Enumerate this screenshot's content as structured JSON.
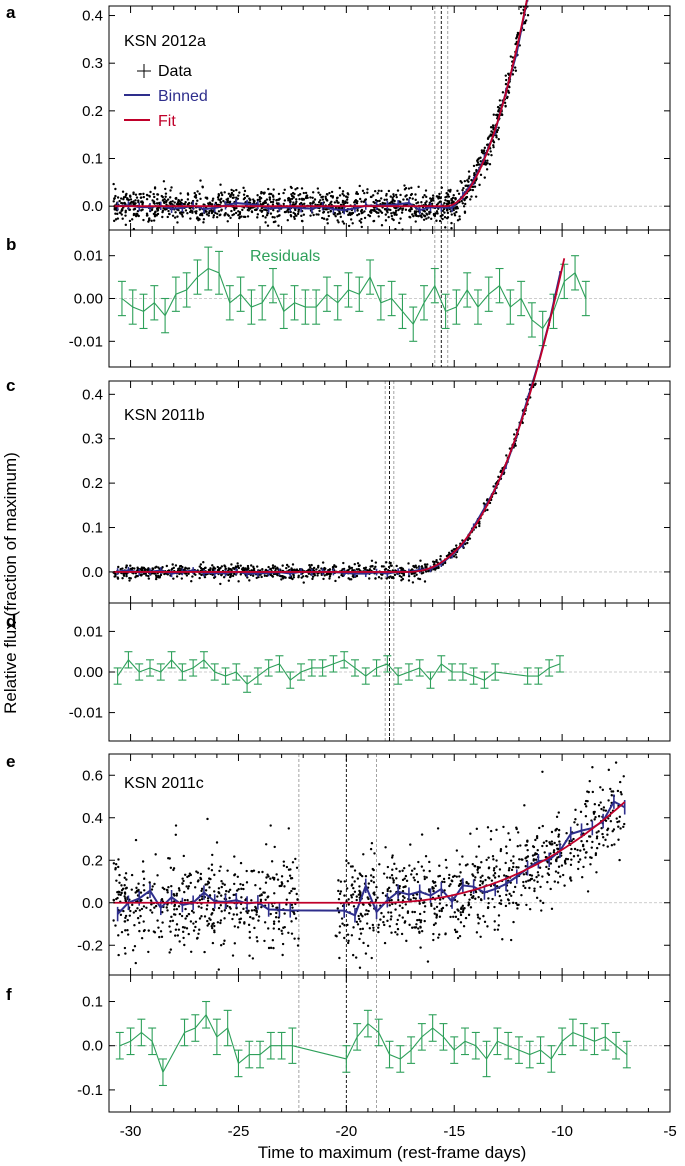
{
  "figure": {
    "ylabel": "Relative flux (fraction of maximum)",
    "xlabel": "Time to maximum (rest-frame days)",
    "x_ticks": [
      -30,
      -25,
      -20,
      -15,
      -10,
      -5
    ],
    "xlim": [
      -31,
      -5
    ],
    "colors": {
      "data": "#000000",
      "binned": "#2e2e8c",
      "fit": "#c0002a",
      "residuals": "#2ea05a",
      "axis": "#000000",
      "guide": "#999999"
    }
  },
  "legend": {
    "data": "Data",
    "binned": "Binned",
    "fit": "Fit",
    "residuals": "Residuals"
  },
  "chart_data": [
    {
      "letter": "a",
      "type": "scatter",
      "title": "KSN 2012a",
      "ylim": [
        -0.05,
        0.42
      ],
      "yticks": [
        0.0,
        0.1,
        0.2,
        0.3,
        0.4
      ],
      "ytick_labels": [
        "0.0",
        "0.1",
        "0.2",
        "0.3",
        "0.4"
      ],
      "vlines": [
        {
          "x": -15.9,
          "style": "gray"
        },
        {
          "x": -15.6,
          "style": "black"
        },
        {
          "x": -15.3,
          "style": "gray"
        }
      ],
      "fit": {
        "t0": -15.4,
        "amp": 0.0305,
        "pow": 2.0,
        "end": -8.6
      },
      "scatter": {
        "sigma": 0.017,
        "density": 72,
        "gaps": []
      },
      "binned": {
        "step": 0.5,
        "sigma": 0.004
      }
    },
    {
      "letter": "b",
      "type": "errorbar",
      "title": "Residuals",
      "ylim": [
        -0.016,
        0.016
      ],
      "yticks": [
        -0.01,
        0.0,
        0.01
      ],
      "ytick_labels": [
        "-0.01",
        "0.00",
        "0.01"
      ],
      "vlines": [
        {
          "x": -15.9,
          "style": "gray"
        },
        {
          "x": -15.6,
          "style": "black"
        },
        {
          "x": -15.3,
          "style": "gray"
        }
      ],
      "x": [
        -30.4,
        -29.9,
        -29.4,
        -28.9,
        -28.4,
        -27.9,
        -27.4,
        -26.9,
        -26.4,
        -25.9,
        -25.4,
        -24.9,
        -24.4,
        -23.9,
        -23.4,
        -22.9,
        -22.4,
        -21.9,
        -21.4,
        -20.9,
        -20.4,
        -19.9,
        -19.4,
        -18.9,
        -18.4,
        -17.9,
        -17.4,
        -16.9,
        -16.4,
        -15.9,
        -15.4,
        -14.9,
        -14.4,
        -13.9,
        -13.4,
        -12.9,
        -12.4,
        -11.9,
        -11.4,
        -10.9,
        -10.4,
        -9.9,
        -9.4,
        -8.9
      ],
      "y": [
        0.0,
        -0.002,
        -0.003,
        -0.001,
        -0.004,
        0.001,
        0.002,
        0.005,
        0.007,
        0.006,
        -0.001,
        0.001,
        -0.002,
        -0.001,
        0.003,
        -0.003,
        -0.001,
        -0.002,
        -0.002,
        0.001,
        -0.001,
        0.002,
        0.001,
        0.005,
        -0.001,
        0.0,
        -0.003,
        -0.006,
        -0.001,
        0.003,
        -0.003,
        -0.002,
        0.002,
        -0.002,
        0.001,
        0.003,
        -0.002,
        0.0,
        -0.005,
        -0.007,
        -0.003,
        0.004,
        0.006,
        0.0
      ],
      "err": [
        0.004,
        0.004,
        0.004,
        0.004,
        0.004,
        0.004,
        0.004,
        0.004,
        0.005,
        0.005,
        0.004,
        0.004,
        0.004,
        0.004,
        0.004,
        0.004,
        0.004,
        0.004,
        0.004,
        0.004,
        0.004,
        0.004,
        0.004,
        0.004,
        0.004,
        0.004,
        0.004,
        0.004,
        0.004,
        0.004,
        0.004,
        0.004,
        0.004,
        0.004,
        0.004,
        0.004,
        0.004,
        0.004,
        0.004,
        0.004,
        0.004,
        0.004,
        0.004,
        0.004
      ]
    },
    {
      "letter": "c",
      "type": "scatter",
      "title": "KSN 2011b",
      "ylim": [
        -0.07,
        0.43
      ],
      "yticks": [
        0.0,
        0.1,
        0.2,
        0.3,
        0.4
      ],
      "ytick_labels": [
        "0.0",
        "0.1",
        "0.2",
        "0.3",
        "0.4"
      ],
      "vlines": [
        {
          "x": -18.2,
          "style": "gray"
        },
        {
          "x": -18.0,
          "style": "black"
        },
        {
          "x": -17.8,
          "style": "gray"
        }
      ],
      "fit": {
        "t0": -17.2,
        "amp": 0.0073,
        "pow": 2.3,
        "end": -9.9
      },
      "scatter": {
        "sigma": 0.008,
        "density": 46,
        "gaps": []
      },
      "binned": {
        "step": 0.5,
        "sigma": 0.003
      }
    },
    {
      "letter": "d",
      "type": "errorbar",
      "title": "",
      "ylim": [
        -0.017,
        0.017
      ],
      "yticks": [
        -0.01,
        0.0,
        0.01
      ],
      "ytick_labels": [
        "-0.01",
        "0.00",
        "0.01"
      ],
      "vlines": [
        {
          "x": -18.2,
          "style": "gray"
        },
        {
          "x": -18.0,
          "style": "black"
        },
        {
          "x": -17.8,
          "style": "gray"
        }
      ],
      "x": [
        -30.6,
        -30.1,
        -29.6,
        -29.1,
        -28.6,
        -28.1,
        -27.6,
        -27.1,
        -26.6,
        -26.1,
        -25.6,
        -25.1,
        -24.6,
        -24.1,
        -23.6,
        -23.1,
        -22.6,
        -22.1,
        -21.6,
        -21.1,
        -20.6,
        -20.1,
        -19.6,
        -19.1,
        -18.6,
        -18.1,
        -17.6,
        -17.1,
        -16.6,
        -16.1,
        -15.6,
        -15.1,
        -14.6,
        -14.1,
        -13.6,
        -13.1,
        -11.6,
        -11.1,
        -10.6,
        -10.1
      ],
      "y": [
        -0.001,
        0.003,
        0.0,
        0.001,
        0.0,
        0.003,
        0.0,
        0.001,
        0.003,
        0.0,
        -0.001,
        0.0,
        -0.003,
        -0.001,
        0.001,
        0.002,
        -0.002,
        0.0,
        0.001,
        0.001,
        0.002,
        0.003,
        0.001,
        -0.001,
        0.001,
        0.002,
        -0.001,
        0.0,
        0.001,
        -0.002,
        0.002,
        0.0,
        0.0,
        -0.001,
        -0.002,
        0.0,
        -0.001,
        -0.001,
        0.001,
        0.002
      ],
      "err": [
        0.002,
        0.002,
        0.002,
        0.002,
        0.002,
        0.002,
        0.002,
        0.002,
        0.002,
        0.002,
        0.002,
        0.002,
        0.002,
        0.002,
        0.002,
        0.002,
        0.002,
        0.002,
        0.002,
        0.002,
        0.002,
        0.002,
        0.002,
        0.002,
        0.002,
        0.002,
        0.002,
        0.002,
        0.002,
        0.002,
        0.002,
        0.002,
        0.002,
        0.002,
        0.002,
        0.002,
        0.002,
        0.002,
        0.002,
        0.002
      ]
    },
    {
      "letter": "e",
      "type": "scatter",
      "title": "KSN 2011c",
      "ylim": [
        -0.34,
        0.7
      ],
      "yticks": [
        -0.2,
        0.0,
        0.2,
        0.4,
        0.6
      ],
      "ytick_labels": [
        "-0.2",
        "0.0",
        "0.2",
        "0.4",
        "0.6"
      ],
      "vlines": [
        {
          "x": -22.2,
          "style": "gray"
        },
        {
          "x": -20.0,
          "style": "black"
        },
        {
          "x": -18.6,
          "style": "gray"
        }
      ],
      "fit": {
        "t0": -18.6,
        "amp": 0.0022,
        "pow": 2.2,
        "end": -7.1
      },
      "scatter": {
        "sigma": 0.11,
        "density": 58,
        "gaps": [
          [
            -22.2,
            -20.5
          ]
        ]
      },
      "binned": {
        "step": 0.5,
        "sigma": 0.025
      }
    },
    {
      "letter": "f",
      "type": "errorbar",
      "title": "",
      "ylim": [
        -0.15,
        0.16
      ],
      "yticks": [
        -0.1,
        0.0,
        0.1
      ],
      "ytick_labels": [
        "-0.1",
        "0.0",
        "0.1"
      ],
      "vlines": [
        {
          "x": -22.2,
          "style": "gray"
        },
        {
          "x": -20.0,
          "style": "black"
        },
        {
          "x": -18.6,
          "style": "gray"
        }
      ],
      "x": [
        -30.5,
        -30.0,
        -29.5,
        -29.0,
        -28.5,
        -27.5,
        -27.0,
        -26.5,
        -26.0,
        -25.5,
        -25.0,
        -24.5,
        -24.0,
        -23.5,
        -23.0,
        -22.5,
        -20.0,
        -19.5,
        -19.0,
        -18.5,
        -18.0,
        -17.5,
        -17.0,
        -16.5,
        -16.0,
        -15.5,
        -15.0,
        -14.5,
        -14.0,
        -13.5,
        -13.0,
        -12.5,
        -12.0,
        -11.5,
        -11.0,
        -10.5,
        -10.0,
        -9.5,
        -9.0,
        -8.5,
        -8.0,
        -7.5,
        -7.0
      ],
      "y": [
        0.0,
        0.01,
        0.03,
        0.01,
        -0.06,
        0.03,
        0.04,
        0.07,
        0.02,
        0.04,
        -0.04,
        -0.02,
        -0.02,
        0.0,
        0.0,
        0.0,
        -0.03,
        0.02,
        0.05,
        0.03,
        -0.02,
        -0.03,
        -0.01,
        0.02,
        0.04,
        0.02,
        -0.01,
        0.01,
        0.0,
        -0.03,
        0.01,
        0.0,
        -0.01,
        -0.02,
        -0.01,
        -0.03,
        0.01,
        0.03,
        0.02,
        0.01,
        0.02,
        0.0,
        -0.02
      ],
      "err": [
        0.03,
        0.03,
        0.03,
        0.03,
        0.03,
        0.03,
        0.03,
        0.03,
        0.04,
        0.04,
        0.03,
        0.03,
        0.03,
        0.03,
        0.03,
        0.04,
        0.03,
        0.03,
        0.03,
        0.03,
        0.03,
        0.03,
        0.03,
        0.03,
        0.03,
        0.03,
        0.03,
        0.03,
        0.03,
        0.04,
        0.03,
        0.03,
        0.03,
        0.03,
        0.03,
        0.03,
        0.03,
        0.03,
        0.03,
        0.03,
        0.03,
        0.03,
        0.03
      ]
    }
  ]
}
